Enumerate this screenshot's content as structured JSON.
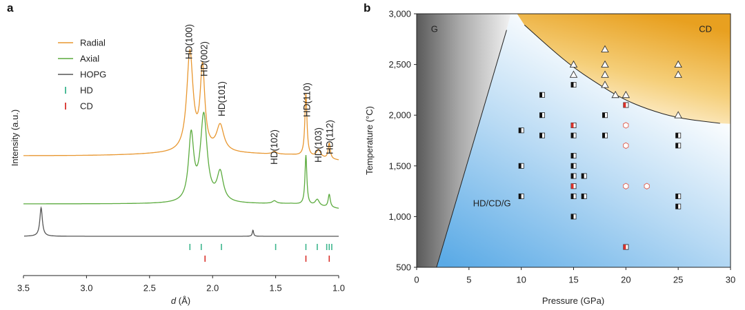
{
  "colors": {
    "radial": "#e8962e",
    "axial": "#5aaa3c",
    "hopg": "#555555",
    "hd_tick": "#3bb58c",
    "cd_tick": "#d9302a",
    "cd_region": "#e8a020",
    "hd_region": "#5aaae6",
    "g_region": "#5a5a5a",
    "tri_fill": "#ffffff",
    "cd_hex": "#e05a4a"
  },
  "chart_data": [
    {
      "panel": "a",
      "type": "line",
      "xlabel": "d (Å)",
      "xlabel_main": "d",
      "xlabel_unit": " (Å)",
      "ylabel": "Intensity (a.u.)",
      "xlim": [
        3.5,
        1.0
      ],
      "x_ticks": [
        "3.5",
        "3.0",
        "2.5",
        "2.0",
        "1.5",
        "1.0"
      ],
      "legend": [
        {
          "label": "Radial",
          "kind": "line",
          "color_key": "radial"
        },
        {
          "label": "Axial",
          "kind": "line",
          "color_key": "axial"
        },
        {
          "label": "HOPG",
          "kind": "line",
          "color_key": "hopg"
        },
        {
          "label": "HD",
          "kind": "tick",
          "color_key": "hd_tick"
        },
        {
          "label": "CD",
          "kind": "tick",
          "color_key": "cd_tick"
        }
      ],
      "series": [
        {
          "name": "Radial",
          "color_key": "radial",
          "baseline": 0.0,
          "background": 0.02,
          "peaks": [
            {
              "d": 2.18,
              "h": 0.76,
              "w": 0.03
            },
            {
              "d": 2.08,
              "h": 0.62,
              "w": 0.022
            },
            {
              "d": 1.94,
              "h": 0.2,
              "w": 0.035
            },
            {
              "d": 1.51,
              "h": 0.02,
              "w": 0.02
            },
            {
              "d": 1.26,
              "h": 0.48,
              "w": 0.01
            },
            {
              "d": 1.16,
              "h": 0.06,
              "w": 0.02
            },
            {
              "d": 1.075,
              "h": 0.12,
              "w": 0.01
            }
          ]
        },
        {
          "name": "Axial",
          "color_key": "axial",
          "baseline": 0.0,
          "background": 0.0,
          "peaks": [
            {
              "d": 2.17,
              "h": 0.5,
              "w": 0.025
            },
            {
              "d": 2.07,
              "h": 0.66,
              "w": 0.032
            },
            {
              "d": 1.94,
              "h": 0.22,
              "w": 0.03
            },
            {
              "d": 1.51,
              "h": 0.02,
              "w": 0.02
            },
            {
              "d": 1.26,
              "h": 0.38,
              "w": 0.009
            },
            {
              "d": 1.17,
              "h": 0.05,
              "w": 0.02
            },
            {
              "d": 1.075,
              "h": 0.1,
              "w": 0.01
            }
          ]
        },
        {
          "name": "HOPG",
          "color_key": "hopg",
          "baseline": 0.0,
          "background": 0.0,
          "peaks": [
            {
              "d": 3.36,
              "h": 0.32,
              "w": 0.012
            },
            {
              "d": 1.68,
              "h": 0.07,
              "w": 0.006
            }
          ]
        }
      ],
      "hd_ticks": [
        2.18,
        2.09,
        1.93,
        1.5,
        1.26,
        1.17,
        1.095,
        1.075,
        1.055
      ],
      "cd_ticks": [
        2.06,
        1.26,
        1.075
      ],
      "annotations": [
        {
          "text": "HD(100)",
          "d": 2.19
        },
        {
          "text": "HD(002)",
          "d": 2.07
        },
        {
          "text": "HD(101)",
          "d": 1.93
        },
        {
          "text": "HD(102)",
          "d": 1.515
        },
        {
          "text": "HD(110)",
          "d": 1.255
        },
        {
          "text": "HD(103)",
          "d": 1.165
        },
        {
          "text": "HD(112)",
          "d": 1.075
        }
      ]
    },
    {
      "panel": "b",
      "type": "scatter",
      "xlabel": "Pressure (GPa)",
      "ylabel": "Temperature (°C)",
      "xlim": [
        0,
        30
      ],
      "ylim": [
        500,
        3000
      ],
      "x_ticks": [
        "0",
        "5",
        "10",
        "15",
        "20",
        "25",
        "30"
      ],
      "y_ticks": [
        "500",
        "1,000",
        "1,500",
        "2,000",
        "2,500",
        "3,000"
      ],
      "regions": [
        {
          "label": "G",
          "at": [
            1.7,
            2820
          ]
        },
        {
          "label": "CD",
          "at": [
            27.6,
            2820
          ]
        },
        {
          "label": "HD/CD/G",
          "at": [
            7.2,
            1100
          ]
        }
      ],
      "g_boundary": [
        [
          1.9,
          500
        ],
        [
          8.6,
          2840
        ]
      ],
      "cd_boundary": [
        [
          10.3,
          2890
        ],
        [
          13,
          2640
        ],
        [
          15,
          2470
        ],
        [
          17,
          2330
        ],
        [
          19.5,
          2170
        ],
        [
          22,
          2060
        ],
        [
          25,
          1970
        ],
        [
          29,
          1920
        ]
      ],
      "points": [
        {
          "type": "tri",
          "p": 15,
          "t": 2500
        },
        {
          "type": "tri",
          "p": 15,
          "t": 2400
        },
        {
          "type": "tri",
          "p": 18,
          "t": 2650
        },
        {
          "type": "tri",
          "p": 18,
          "t": 2500
        },
        {
          "type": "tri",
          "p": 18,
          "t": 2400
        },
        {
          "type": "tri",
          "p": 18,
          "t": 2300
        },
        {
          "type": "tri",
          "p": 19,
          "t": 2200
        },
        {
          "type": "tri",
          "p": 20,
          "t": 2200
        },
        {
          "type": "tri",
          "p": 25,
          "t": 2500
        },
        {
          "type": "tri",
          "p": 25,
          "t": 2400
        },
        {
          "type": "tri",
          "p": 25,
          "t": 2000
        },
        {
          "type": "hex",
          "p": 20,
          "t": 1900
        },
        {
          "type": "hex",
          "p": 20,
          "t": 1700
        },
        {
          "type": "hex",
          "p": 20,
          "t": 1300
        },
        {
          "type": "hex",
          "p": 22,
          "t": 1300
        },
        {
          "type": "sq_red",
          "p": 15,
          "t": 1900
        },
        {
          "type": "sq_red",
          "p": 15,
          "t": 1300
        },
        {
          "type": "sq_red",
          "p": 20,
          "t": 2100
        },
        {
          "type": "sq_red",
          "p": 20,
          "t": 700
        },
        {
          "type": "sq",
          "p": 15,
          "t": 2300
        },
        {
          "type": "sq",
          "p": 12,
          "t": 2200
        },
        {
          "type": "sq",
          "p": 12,
          "t": 2000
        },
        {
          "type": "sq",
          "p": 18,
          "t": 2000
        },
        {
          "type": "sq",
          "p": 10,
          "t": 1850
        },
        {
          "type": "sq",
          "p": 12,
          "t": 1800
        },
        {
          "type": "sq",
          "p": 15,
          "t": 1800
        },
        {
          "type": "sq",
          "p": 18,
          "t": 1800
        },
        {
          "type": "sq",
          "p": 25,
          "t": 1800
        },
        {
          "type": "sq",
          "p": 25,
          "t": 1700
        },
        {
          "type": "sq",
          "p": 15,
          "t": 1600
        },
        {
          "type": "sq",
          "p": 10,
          "t": 1500
        },
        {
          "type": "sq",
          "p": 15,
          "t": 1500
        },
        {
          "type": "sq",
          "p": 15,
          "t": 1400
        },
        {
          "type": "sq",
          "p": 16,
          "t": 1400
        },
        {
          "type": "sq",
          "p": 10,
          "t": 1200
        },
        {
          "type": "sq",
          "p": 15,
          "t": 1200
        },
        {
          "type": "sq",
          "p": 16,
          "t": 1200
        },
        {
          "type": "sq",
          "p": 25,
          "t": 1200
        },
        {
          "type": "sq",
          "p": 25,
          "t": 1100
        },
        {
          "type": "sq",
          "p": 15,
          "t": 1000
        }
      ]
    }
  ]
}
